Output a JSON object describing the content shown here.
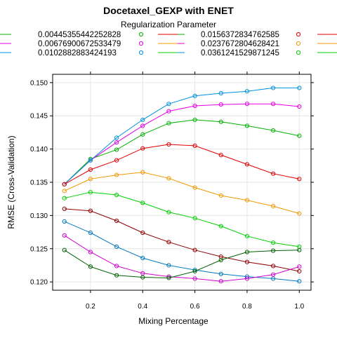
{
  "chart_data": {
    "type": "line",
    "title": "Docetaxel_GEXP with ENET",
    "legend_title": "Regularization Parameter",
    "legend_position": "top",
    "xlabel": "Mixing Percentage",
    "ylabel": "RMSE (Cross-Validation)",
    "xlim": [
      0.055,
      1.045
    ],
    "ylim": [
      0.11875,
      0.15125
    ],
    "x_ticks": [
      {
        "v": 0.2,
        "label": "0.2"
      },
      {
        "v": 0.4,
        "label": "0.4"
      },
      {
        "v": 0.6,
        "label": "0.6"
      },
      {
        "v": 0.8,
        "label": "0.8"
      },
      {
        "v": 1.0,
        "label": "1.0"
      }
    ],
    "y_ticks": [
      {
        "v": 0.12,
        "label": "0.120"
      },
      {
        "v": 0.125,
        "label": "0.125"
      },
      {
        "v": 0.13,
        "label": "0.130"
      },
      {
        "v": 0.135,
        "label": "0.135"
      },
      {
        "v": 0.14,
        "label": "0.140"
      },
      {
        "v": 0.145,
        "label": "0.145"
      },
      {
        "v": 0.15,
        "label": "0.150"
      }
    ],
    "grid": true,
    "x": [
      0.1,
      0.2,
      0.3,
      0.4,
      0.5,
      0.6,
      0.7,
      0.8,
      0.9,
      1.0
    ],
    "series": [
      {
        "name": "0.00445355442252828",
        "color": "#00B000",
        "values": [
          0.1347,
          0.1385,
          0.1399,
          0.1422,
          0.1439,
          0.1444,
          0.1441,
          0.1435,
          0.1428,
          0.142
        ]
      },
      {
        "name": "0.00676900672533479",
        "color": "#E300E3",
        "values": [
          0.1347,
          0.1383,
          0.141,
          0.1435,
          0.1457,
          0.1465,
          0.1467,
          0.1468,
          0.1468,
          0.1464
        ]
      },
      {
        "name": "0.0102882883424193",
        "color": "#0090E0",
        "values": [
          0.1347,
          0.1383,
          0.1417,
          0.1444,
          0.1468,
          0.148,
          0.1484,
          0.1487,
          0.1492,
          0.1492
        ]
      },
      {
        "name": "0.0156372834762585",
        "color": "#E00000",
        "values": [
          0.1347,
          0.1369,
          0.1383,
          0.1401,
          0.1407,
          0.1405,
          0.1391,
          0.1377,
          0.1363,
          0.1355
        ]
      },
      {
        "name": "0.0237672804628421",
        "color": "#F29800",
        "values": [
          0.1337,
          0.1355,
          0.1361,
          0.1365,
          0.1356,
          0.1342,
          0.133,
          0.1323,
          0.1314,
          0.1303
        ]
      },
      {
        "name": "0.0361241529871245",
        "color": "#00D000",
        "values": [
          0.1326,
          0.1335,
          0.1331,
          0.1319,
          0.1305,
          0.1296,
          0.1284,
          0.1269,
          0.1259,
          0.1253
        ]
      },
      {
        "color": "#900000",
        "values": [
          0.131,
          0.1307,
          0.1292,
          0.1274,
          0.126,
          0.1248,
          0.1238,
          0.123,
          0.1224,
          0.1216
        ]
      },
      {
        "color": "#0079C0",
        "values": [
          0.1291,
          0.1274,
          0.1253,
          0.1236,
          0.1225,
          0.1218,
          0.1212,
          0.1208,
          0.1205,
          0.1201
        ]
      },
      {
        "color": "#D000D0",
        "values": [
          0.127,
          0.1245,
          0.1224,
          0.1213,
          0.1208,
          0.1205,
          0.1201,
          0.1205,
          0.1211,
          0.1223
        ]
      },
      {
        "color": "#006000",
        "values": [
          0.1248,
          0.1223,
          0.121,
          0.1207,
          0.1206,
          0.1216,
          0.1233,
          0.1245,
          0.1247,
          0.1248
        ]
      }
    ]
  }
}
